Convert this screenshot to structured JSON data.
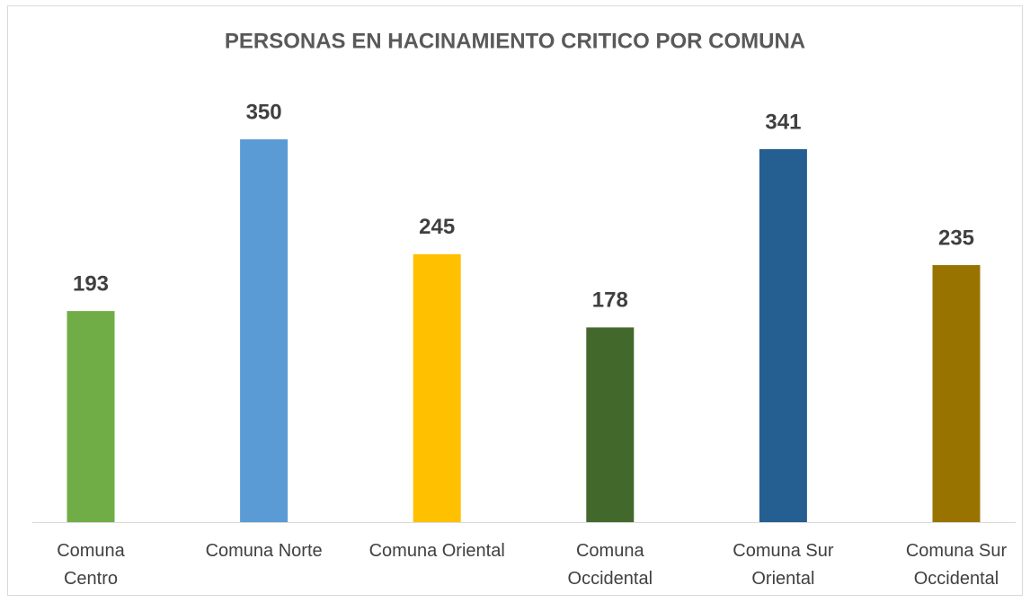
{
  "chart_data": {
    "type": "bar",
    "title": "PERSONAS EN HACINAMIENTO CRITICO POR COMUNA",
    "categories": [
      "Comuna Centro",
      "Comuna Norte",
      "Comuna Oriental",
      "Comuna Occidental",
      "Comuna Sur Oriental",
      "Comuna Sur Occidental"
    ],
    "values": [
      193,
      350,
      245,
      178,
      341,
      235
    ],
    "colors": [
      "#70ad47",
      "#5b9bd5",
      "#ffc000",
      "#43682b",
      "#255e91",
      "#997300"
    ]
  }
}
